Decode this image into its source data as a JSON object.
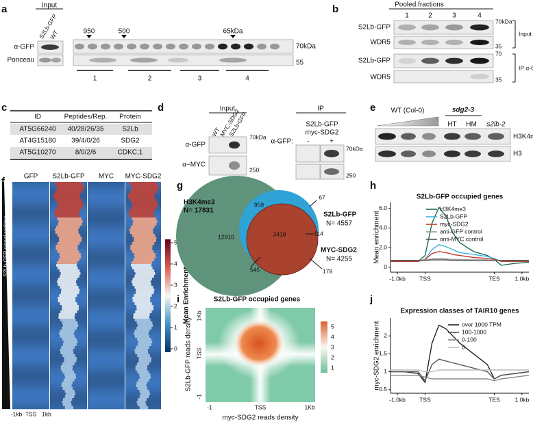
{
  "figure": {
    "panel_letters": [
      "a",
      "b",
      "c",
      "d",
      "e",
      "f",
      "g",
      "h",
      "i",
      "j"
    ],
    "a": {
      "input": "Input",
      "lanes": [
        "S2Lb-GFP",
        "WT"
      ],
      "rows": [
        "α-GFP",
        "Ponceau"
      ],
      "markers": [
        "950",
        "500",
        "65kDa"
      ],
      "mw": [
        "70kDa",
        "55"
      ],
      "fractions": [
        "1",
        "2",
        "3",
        "4"
      ]
    },
    "b": {
      "title": "Pooled fractions",
      "lanes": [
        "1",
        "2",
        "3",
        "4"
      ],
      "rows": [
        "S2Lb-GFP",
        "WDR5",
        "S2Lb-GFP",
        "WDR5"
      ],
      "mw": [
        "70kDa",
        "35",
        "70",
        "35"
      ],
      "groups": [
        "Input",
        "IP α-GFP"
      ]
    },
    "c": {
      "table": {
        "header": [
          "ID",
          "Peptides/Rep.",
          "Protein"
        ],
        "rows": [
          [
            "AT5G66240",
            "40/28/26/35",
            "S2Lb"
          ],
          [
            "AT4G15180",
            "39/4/0/26",
            "SDG2"
          ],
          [
            "AT5G10270",
            "8/0/2/6",
            "CDKC;1"
          ]
        ]
      }
    },
    "d": {
      "input": "Input",
      "ip": "IP",
      "lanes": [
        "WT",
        "MYC-SDG2",
        "S2Lb-GFP"
      ],
      "rows": [
        "α-GFP",
        "α−MYC"
      ],
      "mw": [
        "70kDa",
        "250"
      ],
      "ip_strains": [
        "S2Lb-GFP",
        "myc-SDG2"
      ],
      "ip_antibody": "α-GFP:",
      "ip_lanes": [
        "-",
        "+"
      ],
      "ip_mw": [
        "70kDa",
        "250"
      ]
    },
    "e": {
      "wt": "WT (Col-0)",
      "mutant": "sdg2-3",
      "lanes": [
        "HT",
        "HM",
        "s2lb-2"
      ],
      "rows": [
        "H3K4me3",
        "H3"
      ]
    },
    "f": {
      "columns": [
        "GFP",
        "S2Lb-GFP",
        "MYC",
        "MYC-SDG2"
      ],
      "ranking": "S2Lb-GFP signal ranking",
      "xticks": [
        "-1kb",
        "TSS",
        "1kb"
      ],
      "colorbar_title": "Mean Enrichment",
      "colorbar_ticks": [
        0,
        1,
        2,
        3,
        4,
        5
      ]
    },
    "g": {
      "sets": [
        {
          "name": "H3K4me3",
          "n": "N= 17831"
        },
        {
          "name": "S2Lb-GFP",
          "n": "N= 4557"
        },
        {
          "name": "MYC-SDG2",
          "n": "N= 4255"
        }
      ],
      "counts": [
        958,
        67,
        12910,
        3418,
        114,
        545,
        178
      ]
    },
    "i": {
      "title": "S2Lb-GFP occupied genes",
      "xlabel": "myc-SDG2 reads density",
      "ylabel": "S2Lb-GFP reads density",
      "xticks": [
        "-1",
        "TSS",
        "1Kb"
      ],
      "yticks": [
        "-1",
        "TSS",
        "1Kb"
      ],
      "colorbar_ticks": [
        1,
        2,
        3,
        4,
        5
      ]
    }
  },
  "chart_data": [
    {
      "type": "line",
      "title": "S2Lb-GFP occupied genes",
      "ylabel": "Mean enrichment",
      "x": [
        0,
        10,
        20,
        25,
        30,
        35,
        40,
        45,
        50,
        60,
        70,
        75,
        80,
        90,
        100
      ],
      "xlim": [
        0,
        100
      ],
      "xticks": [
        {
          "value": 5,
          "label": "-1.0kb"
        },
        {
          "value": 25,
          "label": "TSS"
        },
        {
          "value": 75,
          "label": "TES"
        },
        {
          "value": 95,
          "label": "1.0kb"
        }
      ],
      "ylim": [
        -0.5,
        6.6
      ],
      "yticks": [
        0,
        {
          "value": 2,
          "label": "2.0"
        },
        {
          "value": 4,
          "label": "4.0"
        },
        {
          "value": 6,
          "label": "6.0"
        }
      ],
      "legend": "upper right",
      "series": [
        {
          "name": "H3K4me3",
          "color": "#1b6b50",
          "values": [
            0.6,
            0.6,
            0.6,
            1.2,
            4.5,
            6.1,
            5.2,
            3.5,
            2.5,
            1.6,
            1.2,
            0.8,
            0.2,
            0.4,
            0.5
          ]
        },
        {
          "name": "S2Lb-GFP",
          "color": "#3ab0e0",
          "values": [
            0.6,
            0.6,
            0.6,
            0.8,
            1.8,
            2.3,
            2.1,
            1.8,
            1.5,
            1.3,
            1.1,
            0.9,
            0.6,
            0.6,
            0.6
          ]
        },
        {
          "name": "myc-SDG2",
          "color": "#c0392b",
          "values": [
            0.6,
            0.6,
            0.6,
            0.8,
            1.4,
            1.6,
            1.5,
            1.3,
            1.2,
            1.0,
            0.9,
            0.8,
            0.6,
            0.6,
            0.6
          ]
        },
        {
          "name": "anti-GFP control",
          "color": "#9a9a9a",
          "values": [
            0.7,
            0.7,
            0.7,
            0.75,
            0.85,
            0.9,
            0.85,
            0.8,
            0.8,
            0.75,
            0.75,
            0.7,
            0.7,
            0.7,
            0.7
          ]
        },
        {
          "name": "anti-MYC control",
          "color": "#555555",
          "values": [
            0.7,
            0.7,
            0.7,
            0.7,
            0.75,
            0.75,
            0.75,
            0.7,
            0.7,
            0.7,
            0.7,
            0.7,
            0.7,
            0.7,
            0.7
          ]
        }
      ]
    },
    {
      "type": "line",
      "title": "Expression classes of TAIR10 genes",
      "ylabel": "myc-SDG2 enrichment",
      "x": [
        0,
        10,
        20,
        25,
        30,
        35,
        40,
        45,
        50,
        60,
        70,
        75,
        80,
        90,
        100
      ],
      "xlim": [
        0,
        100
      ],
      "xticks": [
        {
          "value": 5,
          "label": "-1.0kb"
        },
        {
          "value": 25,
          "label": "TSS"
        },
        {
          "value": 75,
          "label": "TES"
        },
        {
          "value": 95,
          "label": "1.0kb"
        }
      ],
      "ylim": [
        0.4,
        2.5
      ],
      "yticks": [
        0.5,
        1,
        1.5,
        2
      ],
      "legend": "upper right",
      "series": [
        {
          "name": "over 1000 TPM",
          "color": "#222222",
          "values": [
            1,
            1,
            0.95,
            0.7,
            1.8,
            2.3,
            2.2,
            2.0,
            1.8,
            1.5,
            1.2,
            0.8,
            0.9,
            0.95,
            1
          ]
        },
        {
          "name": "100-1000",
          "color": "#555555",
          "values": [
            1,
            1,
            1,
            0.75,
            1.2,
            1.35,
            1.3,
            1.25,
            1.2,
            1.1,
            1.0,
            0.8,
            0.9,
            0.95,
            1
          ]
        },
        {
          "name": "0-100",
          "color": "#888888",
          "values": [
            0.9,
            0.9,
            0.9,
            0.85,
            0.8,
            0.8,
            0.8,
            0.8,
            0.8,
            0.8,
            0.8,
            0.75,
            0.8,
            0.85,
            0.9
          ]
        },
        {
          "name": "0",
          "color": "#bbbbbb",
          "values": [
            1.05,
            1.05,
            1.05,
            1.0,
            1.0,
            1.05,
            1.05,
            1.05,
            1.05,
            1.05,
            1.05,
            1.05,
            1.05,
            1.05,
            1.05
          ]
        }
      ]
    }
  ]
}
